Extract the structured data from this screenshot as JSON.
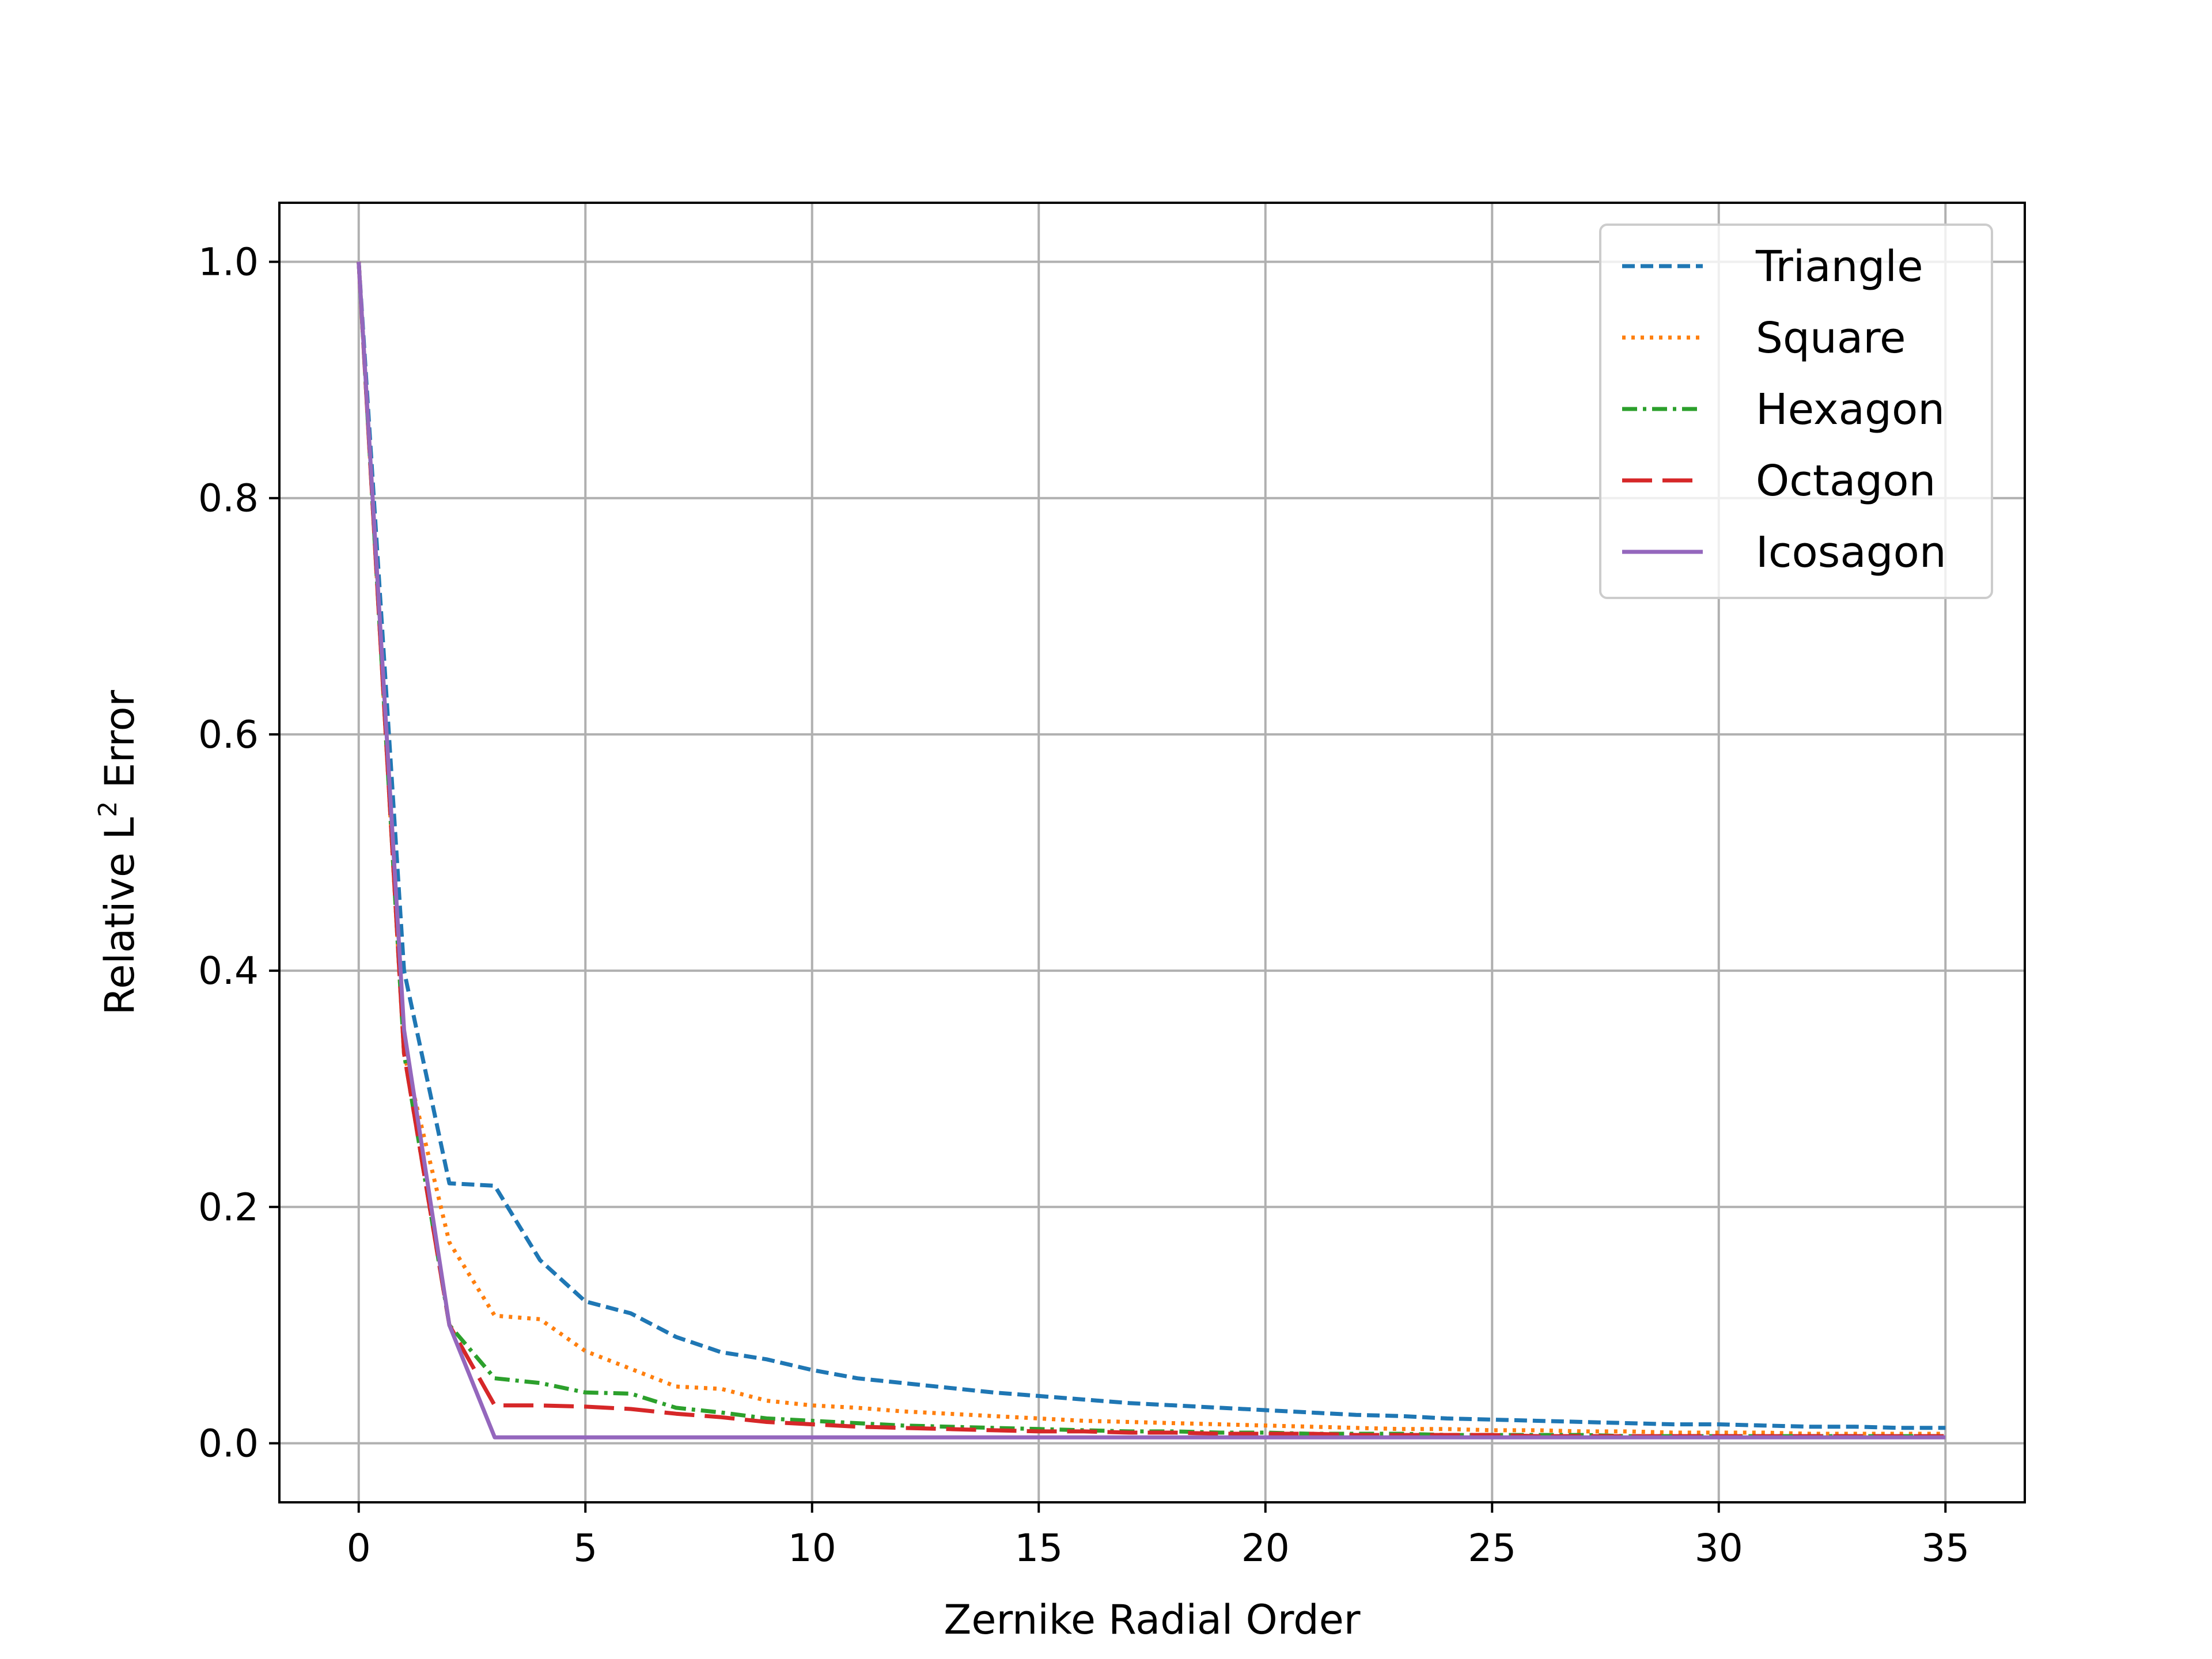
{
  "chart_data": {
    "type": "line",
    "title": "",
    "xlabel": "Zernike Radial Order",
    "ylabel_main": "Relative L",
    "ylabel_sup": "2",
    "ylabel_tail": " Error",
    "xlim": [
      -1.75,
      36.75
    ],
    "ylim": [
      -0.05,
      1.05
    ],
    "xticks": [
      0,
      5,
      10,
      15,
      20,
      25,
      30,
      35
    ],
    "yticks": [
      0.0,
      0.2,
      0.4,
      0.6,
      0.8,
      1.0
    ],
    "ytick_labels": [
      "0.0",
      "0.2",
      "0.4",
      "0.6",
      "0.8",
      "1.0"
    ],
    "grid": true,
    "legend_position": "top-right",
    "x": [
      0,
      1,
      2,
      3,
      4,
      5,
      6,
      7,
      8,
      9,
      10,
      11,
      12,
      13,
      14,
      15,
      16,
      17,
      18,
      19,
      20,
      21,
      22,
      23,
      24,
      25,
      26,
      27,
      28,
      29,
      30,
      31,
      32,
      33,
      34,
      35
    ],
    "series": [
      {
        "name": "Triangle",
        "color": "#1f77b4",
        "dash": "dashed",
        "values": [
          1.0,
          0.4,
          0.22,
          0.218,
          0.155,
          0.12,
          0.11,
          0.09,
          0.077,
          0.071,
          0.062,
          0.055,
          0.051,
          0.047,
          0.043,
          0.04,
          0.037,
          0.034,
          0.032,
          0.03,
          0.028,
          0.026,
          0.024,
          0.023,
          0.021,
          0.02,
          0.019,
          0.018,
          0.017,
          0.016,
          0.016,
          0.015,
          0.014,
          0.014,
          0.013,
          0.013
        ]
      },
      {
        "name": "Square",
        "color": "#ff7f0e",
        "dash": "dotted",
        "values": [
          1.0,
          0.33,
          0.17,
          0.108,
          0.105,
          0.078,
          0.063,
          0.048,
          0.046,
          0.036,
          0.032,
          0.03,
          0.027,
          0.025,
          0.023,
          0.021,
          0.019,
          0.018,
          0.017,
          0.016,
          0.015,
          0.014,
          0.013,
          0.012,
          0.012,
          0.011,
          0.011,
          0.01,
          0.01,
          0.009,
          0.009,
          0.009,
          0.008,
          0.008,
          0.008,
          0.008
        ]
      },
      {
        "name": "Hexagon",
        "color": "#2ca02c",
        "dash": "dashdot",
        "values": [
          1.0,
          0.33,
          0.1,
          0.055,
          0.051,
          0.043,
          0.042,
          0.03,
          0.026,
          0.021,
          0.019,
          0.017,
          0.015,
          0.014,
          0.013,
          0.012,
          0.011,
          0.01,
          0.01,
          0.009,
          0.009,
          0.008,
          0.008,
          0.008,
          0.007,
          0.007,
          0.007,
          0.007,
          0.006,
          0.006,
          0.006,
          0.006,
          0.006,
          0.006,
          0.006,
          0.006
        ]
      },
      {
        "name": "Octagon",
        "color": "#d62728",
        "dash": "longdash",
        "values": [
          1.0,
          0.33,
          0.1,
          0.032,
          0.032,
          0.031,
          0.029,
          0.025,
          0.022,
          0.018,
          0.016,
          0.014,
          0.013,
          0.012,
          0.011,
          0.01,
          0.01,
          0.009,
          0.009,
          0.008,
          0.008,
          0.008,
          0.007,
          0.007,
          0.007,
          0.007,
          0.006,
          0.006,
          0.006,
          0.006,
          0.006,
          0.006,
          0.006,
          0.006,
          0.006,
          0.006
        ]
      },
      {
        "name": "Icosagon",
        "color": "#9467bd",
        "dash": "solid",
        "values": [
          1.0,
          0.35,
          0.1,
          0.005,
          0.005,
          0.005,
          0.005,
          0.005,
          0.005,
          0.005,
          0.005,
          0.005,
          0.005,
          0.005,
          0.005,
          0.005,
          0.005,
          0.005,
          0.005,
          0.005,
          0.005,
          0.005,
          0.005,
          0.005,
          0.005,
          0.005,
          0.005,
          0.005,
          0.005,
          0.005,
          0.005,
          0.005,
          0.005,
          0.005,
          0.005,
          0.005
        ]
      }
    ]
  }
}
